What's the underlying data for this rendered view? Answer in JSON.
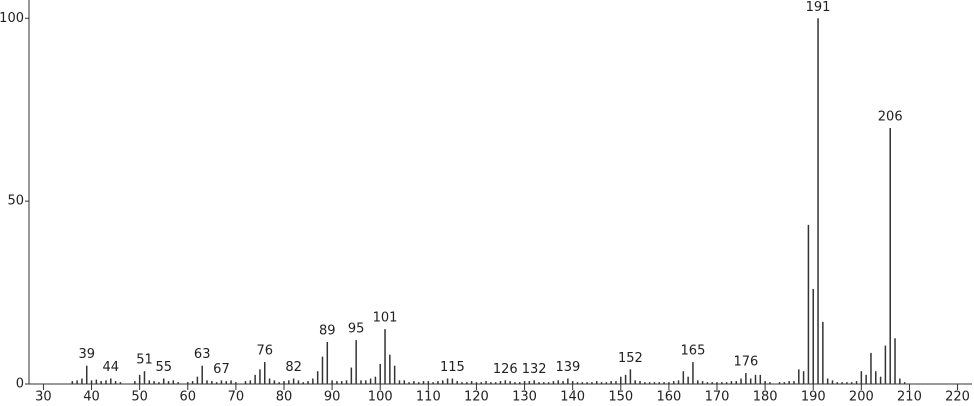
{
  "chart_data": {
    "type": "stem",
    "color": "#333333",
    "xlim": [
      27,
      223
    ],
    "ylim": [
      0,
      105
    ],
    "xticks": [
      30,
      40,
      50,
      60,
      70,
      80,
      90,
      100,
      110,
      120,
      130,
      140,
      150,
      160,
      170,
      180,
      190,
      200,
      210,
      220
    ],
    "yticks": [
      0,
      50,
      100
    ],
    "x": [
      36,
      37,
      38,
      39,
      40,
      41,
      42,
      43,
      44,
      45,
      46,
      49,
      50,
      51,
      52,
      53,
      54,
      55,
      56,
      57,
      58,
      60,
      61,
      62,
      63,
      64,
      65,
      66,
      67,
      68,
      69,
      70,
      72,
      73,
      74,
      75,
      76,
      77,
      78,
      79,
      80,
      81,
      82,
      83,
      84,
      85,
      86,
      87,
      88,
      89,
      90,
      91,
      92,
      93,
      94,
      95,
      96,
      97,
      98,
      99,
      100,
      101,
      102,
      103,
      104,
      105,
      106,
      107,
      108,
      109,
      110,
      111,
      112,
      113,
      114,
      115,
      116,
      117,
      118,
      119,
      120,
      121,
      122,
      123,
      124,
      125,
      126,
      127,
      128,
      129,
      130,
      131,
      132,
      133,
      134,
      135,
      136,
      137,
      138,
      139,
      140,
      141,
      142,
      143,
      144,
      145,
      146,
      147,
      148,
      149,
      150,
      151,
      152,
      153,
      154,
      155,
      156,
      157,
      158,
      159,
      160,
      161,
      162,
      163,
      164,
      165,
      166,
      167,
      168,
      169,
      170,
      171,
      172,
      173,
      174,
      175,
      176,
      177,
      178,
      179,
      180,
      181,
      183,
      184,
      185,
      186,
      187,
      188,
      189,
      190,
      191,
      192,
      193,
      194,
      195,
      196,
      197,
      198,
      199,
      200,
      201,
      202,
      203,
      204,
      205,
      206,
      207,
      208,
      209
    ],
    "values": [
      0.8,
      1,
      1.5,
      5,
      1,
      1.2,
      0.8,
      1,
      1.5,
      0.8,
      0.5,
      0.8,
      2.5,
      3.5,
      1,
      0.8,
      0.5,
      1.5,
      0.8,
      1,
      0.5,
      0.5,
      0.8,
      2,
      5,
      1,
      0.8,
      0.5,
      1,
      0.8,
      1,
      0.5,
      0.8,
      1,
      2.5,
      4,
      6,
      1.5,
      1,
      0.5,
      0.8,
      1,
      1.5,
      1,
      0.5,
      0.8,
      1.5,
      3.5,
      7.5,
      11.5,
      1,
      0.8,
      0.8,
      1,
      4.5,
      12,
      1,
      1,
      1.5,
      2,
      5.5,
      15,
      8,
      5,
      1,
      1,
      0.5,
      0.8,
      0.5,
      0.8,
      0.8,
      0.5,
      0.8,
      1,
      1.5,
      1.5,
      0.8,
      0.5,
      0.5,
      0.8,
      0.5,
      0.5,
      0.8,
      0.5,
      0.5,
      0.8,
      1,
      0.8,
      0.5,
      0.5,
      0.8,
      0.8,
      1,
      0.5,
      0.5,
      0.5,
      0.8,
      1,
      0.8,
      1.5,
      0.8,
      0.5,
      0.5,
      0.5,
      0.5,
      0.8,
      0.5,
      0.5,
      0.8,
      0.8,
      2,
      2.5,
      4,
      1,
      0.8,
      0.5,
      0.5,
      0.5,
      0.5,
      0.5,
      0.5,
      0.8,
      1,
      3.5,
      2,
      6,
      1,
      0.8,
      0.5,
      0.5,
      0.5,
      0.5,
      0.5,
      0.8,
      0.8,
      1.5,
      3,
      1.5,
      2.5,
      2.5,
      0.8,
      0.5,
      0.5,
      0.5,
      0.8,
      0.8,
      4,
      3.5,
      43.5,
      26,
      100,
      17,
      1.5,
      1,
      0.5,
      0.5,
      0.5,
      0.5,
      0.8,
      3.5,
      2.5,
      8.5,
      3.5,
      2,
      10.5,
      70,
      12.5,
      1.5,
      0.5
    ],
    "annotations": [
      {
        "x": 39,
        "text": "39"
      },
      {
        "x": 44,
        "text": "44"
      },
      {
        "x": 51,
        "text": "51"
      },
      {
        "x": 55,
        "text": "55"
      },
      {
        "x": 63,
        "text": "63"
      },
      {
        "x": 67,
        "text": "67"
      },
      {
        "x": 76,
        "text": "76"
      },
      {
        "x": 82,
        "text": "82"
      },
      {
        "x": 89,
        "text": "89"
      },
      {
        "x": 95,
        "text": "95"
      },
      {
        "x": 101,
        "text": "101"
      },
      {
        "x": 115,
        "text": "115"
      },
      {
        "x": 126,
        "text": "126"
      },
      {
        "x": 132,
        "text": "132"
      },
      {
        "x": 139,
        "text": "139"
      },
      {
        "x": 152,
        "text": "152"
      },
      {
        "x": 165,
        "text": "165"
      },
      {
        "x": 176,
        "text": "176"
      },
      {
        "x": 191,
        "text": "191"
      },
      {
        "x": 206,
        "text": "206"
      }
    ]
  }
}
